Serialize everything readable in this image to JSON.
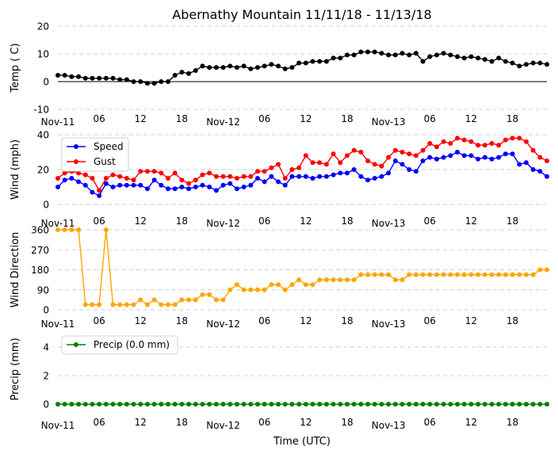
{
  "title": "Abernathy Mountain 11/11/18 - 11/13/18",
  "xlabel": "Time (UTC)",
  "x_ticks": [
    "Nov-11",
    "06",
    "12",
    "18",
    "Nov-12",
    "06",
    "12",
    "18",
    "Nov-13",
    "06",
    "12",
    "18"
  ],
  "chart_data": [
    {
      "type": "line",
      "ylabel": "Temp ( C)",
      "ylim": [
        -10,
        20
      ],
      "yticks": [
        -10,
        0,
        10,
        20
      ],
      "zero_line": true,
      "grid": true,
      "series": [
        {
          "color": "#000000",
          "values": [
            2.3,
            2.3,
            1.8,
            1.8,
            1.2,
            1.2,
            1.2,
            1.2,
            1.2,
            0.7,
            0.7,
            0.0,
            0.0,
            -0.6,
            -0.6,
            0.0,
            0.0,
            2.3,
            3.4,
            2.9,
            4.0,
            5.6,
            5.1,
            5.1,
            5.1,
            5.6,
            5.1,
            5.6,
            4.6,
            5.1,
            5.6,
            6.2,
            5.6,
            4.6,
            5.1,
            6.7,
            6.7,
            7.3,
            7.3,
            7.3,
            8.5,
            8.5,
            9.6,
            9.6,
            10.7,
            10.7,
            10.7,
            10.2,
            9.6,
            9.6,
            10.2,
            9.6,
            10.2,
            7.3,
            9.0,
            9.6,
            10.2,
            9.6,
            9.0,
            8.5,
            9.0,
            8.5,
            8.0,
            7.3,
            8.5,
            7.3,
            6.7,
            5.6,
            6.2,
            6.7,
            6.7,
            6.2
          ]
        }
      ]
    },
    {
      "type": "line",
      "ylabel": "Wind (mph)",
      "ylim": [
        0,
        40
      ],
      "yticks": [
        0,
        20,
        40
      ],
      "grid": true,
      "legend": "top-left",
      "series": [
        {
          "name": "Speed",
          "color": "#0000ff",
          "values": [
            10,
            14,
            15,
            13,
            11,
            7,
            5,
            12,
            10,
            11,
            11,
            11,
            11,
            9,
            14,
            11,
            9,
            9,
            10,
            9,
            10,
            11,
            10,
            8,
            11,
            12,
            9,
            10,
            11,
            15,
            13,
            16,
            13,
            11,
            16,
            16,
            16,
            15,
            16,
            16,
            17,
            18,
            18,
            20,
            16,
            14,
            15,
            16,
            18,
            25,
            23,
            20,
            19,
            25,
            27,
            26,
            27,
            28,
            30,
            28,
            28,
            26,
            27,
            26,
            27,
            29,
            29,
            23,
            24,
            20,
            19,
            16
          ]
        },
        {
          "name": "Gust",
          "color": "#ff0000",
          "values": [
            15,
            18,
            19,
            18,
            17,
            15,
            8,
            15,
            17,
            16,
            15,
            14,
            19,
            19,
            19,
            18,
            15,
            18,
            14,
            12,
            14,
            17,
            18,
            16,
            16,
            16,
            15,
            16,
            16,
            19,
            19,
            21,
            23,
            15,
            20,
            21,
            28,
            24,
            24,
            23,
            29,
            24,
            28,
            31,
            30,
            25,
            23,
            22,
            27,
            31,
            30,
            29,
            28,
            31,
            35,
            33,
            36,
            35,
            38,
            37,
            36,
            34,
            34,
            35,
            34,
            37,
            38,
            38,
            36,
            31,
            27,
            25
          ]
        }
      ]
    },
    {
      "type": "line",
      "ylabel": "Wind Direction",
      "ylim": [
        0,
        360
      ],
      "yticks": [
        0,
        90,
        180,
        270,
        360
      ],
      "grid": true,
      "series": [
        {
          "color": "#ffa500",
          "values": [
            360,
            360,
            360,
            360,
            23,
            23,
            23,
            360,
            23,
            23,
            23,
            23,
            45,
            23,
            45,
            23,
            23,
            23,
            45,
            45,
            45,
            68,
            68,
            45,
            45,
            90,
            113,
            90,
            90,
            90,
            90,
            113,
            113,
            90,
            113,
            135,
            113,
            113,
            135,
            135,
            135,
            135,
            135,
            135,
            158,
            158,
            158,
            158,
            158,
            135,
            135,
            158,
            158,
            158,
            158,
            158,
            158,
            158,
            158,
            158,
            158,
            158,
            158,
            158,
            158,
            158,
            158,
            158,
            158,
            158,
            180,
            180
          ]
        }
      ]
    },
    {
      "type": "line",
      "ylabel": "Precip (mm)",
      "ylim": [
        -0.6,
        5
      ],
      "yticks": [
        0,
        2,
        4
      ],
      "grid": true,
      "legend": "top-left",
      "series": [
        {
          "name": "Precip (0.0 mm)",
          "color": "#008000",
          "values": [
            0,
            0,
            0,
            0,
            0,
            0,
            0,
            0,
            0,
            0,
            0,
            0,
            0,
            0,
            0,
            0,
            0,
            0,
            0,
            0,
            0,
            0,
            0,
            0,
            0,
            0,
            0,
            0,
            0,
            0,
            0,
            0,
            0,
            0,
            0,
            0,
            0,
            0,
            0,
            0,
            0,
            0,
            0,
            0,
            0,
            0,
            0,
            0,
            0,
            0,
            0,
            0,
            0,
            0,
            0,
            0,
            0,
            0,
            0,
            0,
            0,
            0,
            0,
            0,
            0,
            0,
            0,
            0,
            0,
            0,
            0,
            0
          ]
        }
      ]
    }
  ]
}
